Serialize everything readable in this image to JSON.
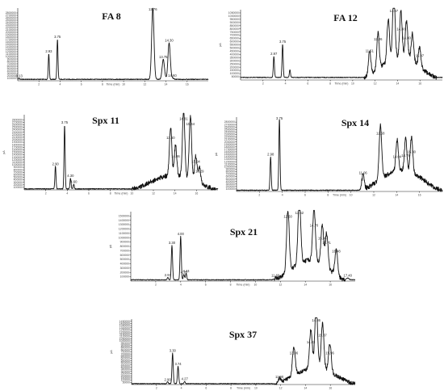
{
  "chart_data": [
    {
      "type": "line",
      "title": "FA 8",
      "xlabel": "Time (min)",
      "ylabel": "pA",
      "xlim": [
        0,
        18
      ],
      "ylim": [
        0,
        3000000
      ],
      "x_ticks": [
        "2",
        "4",
        "6",
        "8",
        "10",
        "12",
        "14",
        "16"
      ],
      "y_ticks": [
        "100000",
        "200000",
        "300000",
        "400000",
        "500000",
        "600000",
        "700000",
        "800000",
        "900000",
        "1000000",
        "1100000",
        "1200000",
        "1300000",
        "1400000",
        "1500000",
        "1600000",
        "1700000",
        "1800000",
        "1900000",
        "2000000",
        "2100000",
        "2200000",
        "2300000",
        "2400000",
        "2500000",
        "2600000",
        "2700000",
        "2800000"
      ],
      "baseline": 60000,
      "peaks": [
        {
          "rt": 0.13,
          "height": 40000,
          "label": "0.13"
        },
        {
          "rt": 2.93,
          "height": 1050000,
          "label": "2.93"
        },
        {
          "rt": 3.75,
          "height": 1650000,
          "label": "3.75"
        },
        {
          "rt": 12.76,
          "height": 2950000,
          "label": "12.76"
        },
        {
          "rt": 13.75,
          "height": 820000,
          "label": "13.75"
        },
        {
          "rt": 14.3,
          "height": 1500000,
          "label": "14.30"
        },
        {
          "rt": 14.6,
          "height": 60000,
          "label": "14.60"
        }
      ]
    },
    {
      "type": "line",
      "title": "FA 12",
      "xlabel": "Time (min)",
      "ylabel": "pA",
      "xlim": [
        0,
        18
      ],
      "ylim": [
        0,
        1100000
      ],
      "x_ticks": [
        "2",
        "4",
        "6",
        "8",
        "10",
        "12",
        "14",
        "16"
      ],
      "y_ticks": [
        "50000",
        "100000",
        "150000",
        "200000",
        "250000",
        "300000",
        "350000",
        "400000",
        "450000",
        "500000",
        "550000",
        "600000",
        "650000",
        "700000",
        "750000",
        "800000",
        "850000",
        "900000",
        "950000",
        "1000000",
        "1050000"
      ],
      "baseline": 40000,
      "peaks": [
        {
          "rt": 2.97,
          "height": 330000,
          "label": "2.97"
        },
        {
          "rt": 3.75,
          "height": 520000,
          "label": "3.75"
        },
        {
          "rt": 4.4,
          "height": 120000,
          "label": ""
        },
        {
          "rt": 11.51,
          "height": 380000,
          "label": "11.51"
        },
        {
          "rt": 12.26,
          "height": 560000,
          "label": "12.26"
        },
        {
          "rt": 13.17,
          "height": 650000,
          "label": ""
        },
        {
          "rt": 13.67,
          "height": 1050000,
          "label": "13.67"
        },
        {
          "rt": 14.3,
          "height": 720000,
          "label": "14.30"
        },
        {
          "rt": 14.8,
          "height": 580000,
          "label": "14.80"
        },
        {
          "rt": 15.33,
          "height": 430000,
          "label": ""
        },
        {
          "rt": 15.97,
          "height": 300000,
          "label": "15.97"
        }
      ]
    },
    {
      "type": "line",
      "title": "Spx 11",
      "xlabel": "Time (min)",
      "ylabel": "pA",
      "xlim": [
        0,
        18
      ],
      "ylim": [
        0,
        3000000
      ],
      "x_ticks": [
        "2",
        "4",
        "6",
        "8",
        "10",
        "12",
        "14",
        "16"
      ],
      "y_ticks": [
        "100000",
        "200000",
        "300000",
        "400000",
        "500000",
        "600000",
        "700000",
        "800000",
        "900000",
        "1000000",
        "1100000",
        "1200000",
        "1300000",
        "1400000",
        "1500000",
        "1600000",
        "1700000",
        "1800000",
        "1900000",
        "2000000",
        "2100000",
        "2200000",
        "2300000",
        "2400000",
        "2500000",
        "2600000",
        "2700000",
        "2800000"
      ],
      "baseline": 40000,
      "peaks": [
        {
          "rt": 2.9,
          "height": 900000,
          "label": "2.90"
        },
        {
          "rt": 3.75,
          "height": 2550000,
          "label": "3.75"
        },
        {
          "rt": 4.3,
          "height": 430000,
          "label": "4.30"
        },
        {
          "rt": 4.6,
          "height": 180000,
          "label": "4.60"
        },
        {
          "rt": 13.6,
          "height": 1950000,
          "label": "13.60"
        },
        {
          "rt": 14.06,
          "height": 1200000,
          "label": "14.06"
        },
        {
          "rt": 14.81,
          "height": 2700000,
          "label": "14.81"
        },
        {
          "rt": 15.44,
          "height": 2500000,
          "label": "15.44"
        },
        {
          "rt": 15.94,
          "height": 1000000,
          "label": "15.94"
        },
        {
          "rt": 16.29,
          "height": 600000,
          "label": "16.29"
        }
      ]
    },
    {
      "type": "line",
      "title": "Spx 14",
      "xlabel": "Time (min)",
      "ylabel": "pA",
      "xlim": [
        0,
        18
      ],
      "ylim": [
        0,
        3000000
      ],
      "x_ticks": [
        "2",
        "4",
        "6",
        "8",
        "10",
        "12",
        "14",
        "16"
      ],
      "y_ticks": [
        "100000",
        "200000",
        "300000",
        "400000",
        "500000",
        "600000",
        "700000",
        "800000",
        "900000",
        "1000000",
        "1100000",
        "1200000",
        "1300000",
        "1400000",
        "1500000",
        "1600000",
        "1700000",
        "1800000",
        "1900000",
        "2000000",
        "2100000",
        "2200000",
        "2300000",
        "2400000",
        "2500000",
        "2600000",
        "2700000",
        "2800000"
      ],
      "baseline": 50000,
      "peaks": [
        {
          "rt": 2.98,
          "height": 1350000,
          "label": "2.98"
        },
        {
          "rt": 3.75,
          "height": 2900000,
          "label": "3.75"
        },
        {
          "rt": 11.06,
          "height": 600000,
          "label": "11.06"
        },
        {
          "rt": 12.58,
          "height": 2200000,
          "label": "12.58"
        },
        {
          "rt": 14.04,
          "height": 1250000,
          "label": "14.04"
        },
        {
          "rt": 14.79,
          "height": 1300000,
          "label": "14.79"
        },
        {
          "rt": 15.3,
          "height": 1450000,
          "label": "15.30"
        }
      ]
    },
    {
      "type": "line",
      "title": "Spx 21",
      "xlabel": "Time (min)",
      "ylabel": "pA",
      "xlim": [
        0,
        18
      ],
      "ylim": [
        0,
        1600000
      ],
      "x_ticks": [
        "2",
        "4",
        "6",
        "8",
        "10",
        "12",
        "14",
        "16"
      ],
      "y_ticks": [
        "100000",
        "200000",
        "300000",
        "400000",
        "500000",
        "600000",
        "700000",
        "800000",
        "900000",
        "1000000",
        "1100000",
        "1200000",
        "1300000",
        "1400000",
        "1500000"
      ],
      "baseline": 30000,
      "peaks": [
        {
          "rt": 2.97,
          "height": 50000,
          "label": "2.97"
        },
        {
          "rt": 3.3,
          "height": 800000,
          "label": "3.30"
        },
        {
          "rt": 4.0,
          "height": 1000000,
          "label": "4.00"
        },
        {
          "rt": 4.26,
          "height": 120000,
          "label": "4.26"
        },
        {
          "rt": 4.44,
          "height": 150000,
          "label": "4.44"
        },
        {
          "rt": 11.6,
          "height": 40000,
          "label": "11.60"
        },
        {
          "rt": 12.6,
          "height": 1400000,
          "label": "12.60"
        },
        {
          "rt": 13.52,
          "height": 1500000,
          "label": "13.52"
        },
        {
          "rt": 14.7,
          "height": 1200000,
          "label": "14.70"
        },
        {
          "rt": 15.36,
          "height": 900000,
          "label": "15.36"
        },
        {
          "rt": 15.71,
          "height": 800000,
          "label": "15.71"
        },
        {
          "rt": 16.48,
          "height": 600000,
          "label": "16.48"
        },
        {
          "rt": 17.4,
          "height": 40000,
          "label": "17.40"
        }
      ]
    },
    {
      "type": "line",
      "title": "Spx 37",
      "xlabel": "Time (min)",
      "ylabel": "pA",
      "xlim": [
        0,
        18
      ],
      "ylim": [
        0,
        1500000
      ],
      "x_ticks": [
        "2",
        "4",
        "6",
        "8",
        "10",
        "12",
        "14",
        "16"
      ],
      "y_ticks": [
        "50000",
        "100000",
        "150000",
        "200000",
        "250000",
        "300000",
        "350000",
        "400000",
        "450000",
        "500000",
        "550000",
        "600000",
        "650000",
        "700000",
        "750000",
        "800000",
        "850000",
        "900000",
        "950000",
        "1000000",
        "1050000",
        "1100000",
        "1150000",
        "1200000",
        "1250000",
        "1300000",
        "1350000",
        "1400000",
        "1450000"
      ],
      "baseline": 20000,
      "peaks": [
        {
          "rt": 2.9,
          "height": 40000,
          "label": "2.90"
        },
        {
          "rt": 3.3,
          "height": 700000,
          "label": "3.30"
        },
        {
          "rt": 3.74,
          "height": 400000,
          "label": "3.74"
        },
        {
          "rt": 4.27,
          "height": 50000,
          "label": "4.27"
        },
        {
          "rt": 11.9,
          "height": 100000,
          "label": "11.90"
        },
        {
          "rt": 13.06,
          "height": 650000,
          "label": "13.06"
        },
        {
          "rt": 14.43,
          "height": 900000,
          "label": "14.43"
        },
        {
          "rt": 14.86,
          "height": 1450000,
          "label": "14.86"
        },
        {
          "rt": 15.37,
          "height": 1050000,
          "label": "15.37"
        },
        {
          "rt": 15.96,
          "height": 650000,
          "label": "15.96"
        }
      ]
    }
  ]
}
